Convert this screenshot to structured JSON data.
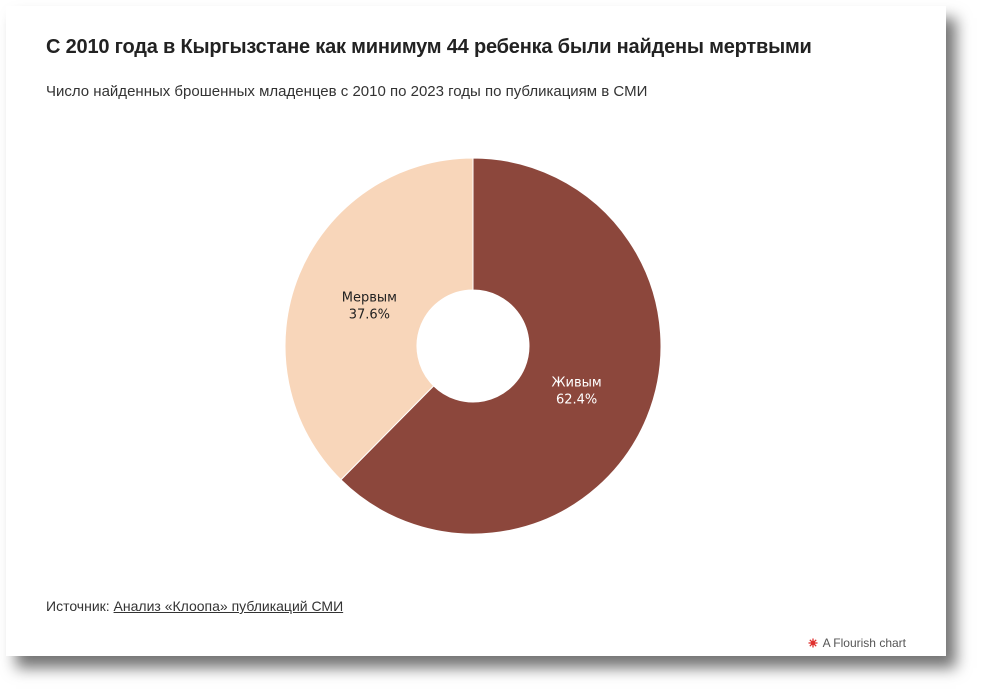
{
  "header": {
    "title": "С 2010 года в Кыргызстане как минимум 44 ребенка были найдены мертвыми",
    "subtitle": "Число найденных брошенных младенцев с 2010 по 2023 годы по публикациям в СМИ"
  },
  "footer": {
    "source_prefix": "Источник:",
    "source_link": "Анализ «Клоопа» публикаций СМИ",
    "credit": "A Flourish chart"
  },
  "colors": {
    "alive": "#8c473c",
    "dead": "#f8d6ba",
    "credit_icon": "#e0312f"
  },
  "icons": {
    "credit": "flourish-logo-icon"
  },
  "chart_data": {
    "type": "pie",
    "donut": true,
    "title": "С 2010 года в Кыргызстане как минимум 44 ребенка были найдены мертвыми",
    "slices": [
      {
        "label": "Живым",
        "value": 62.4,
        "value_label": "62.4%",
        "color": "#8c473c",
        "text_color": "#ffffff"
      },
      {
        "label": "Мервым",
        "value": 37.6,
        "value_label": "37.6%",
        "color": "#f8d6ba",
        "text_color": "#222222"
      }
    ],
    "legend": "none"
  }
}
